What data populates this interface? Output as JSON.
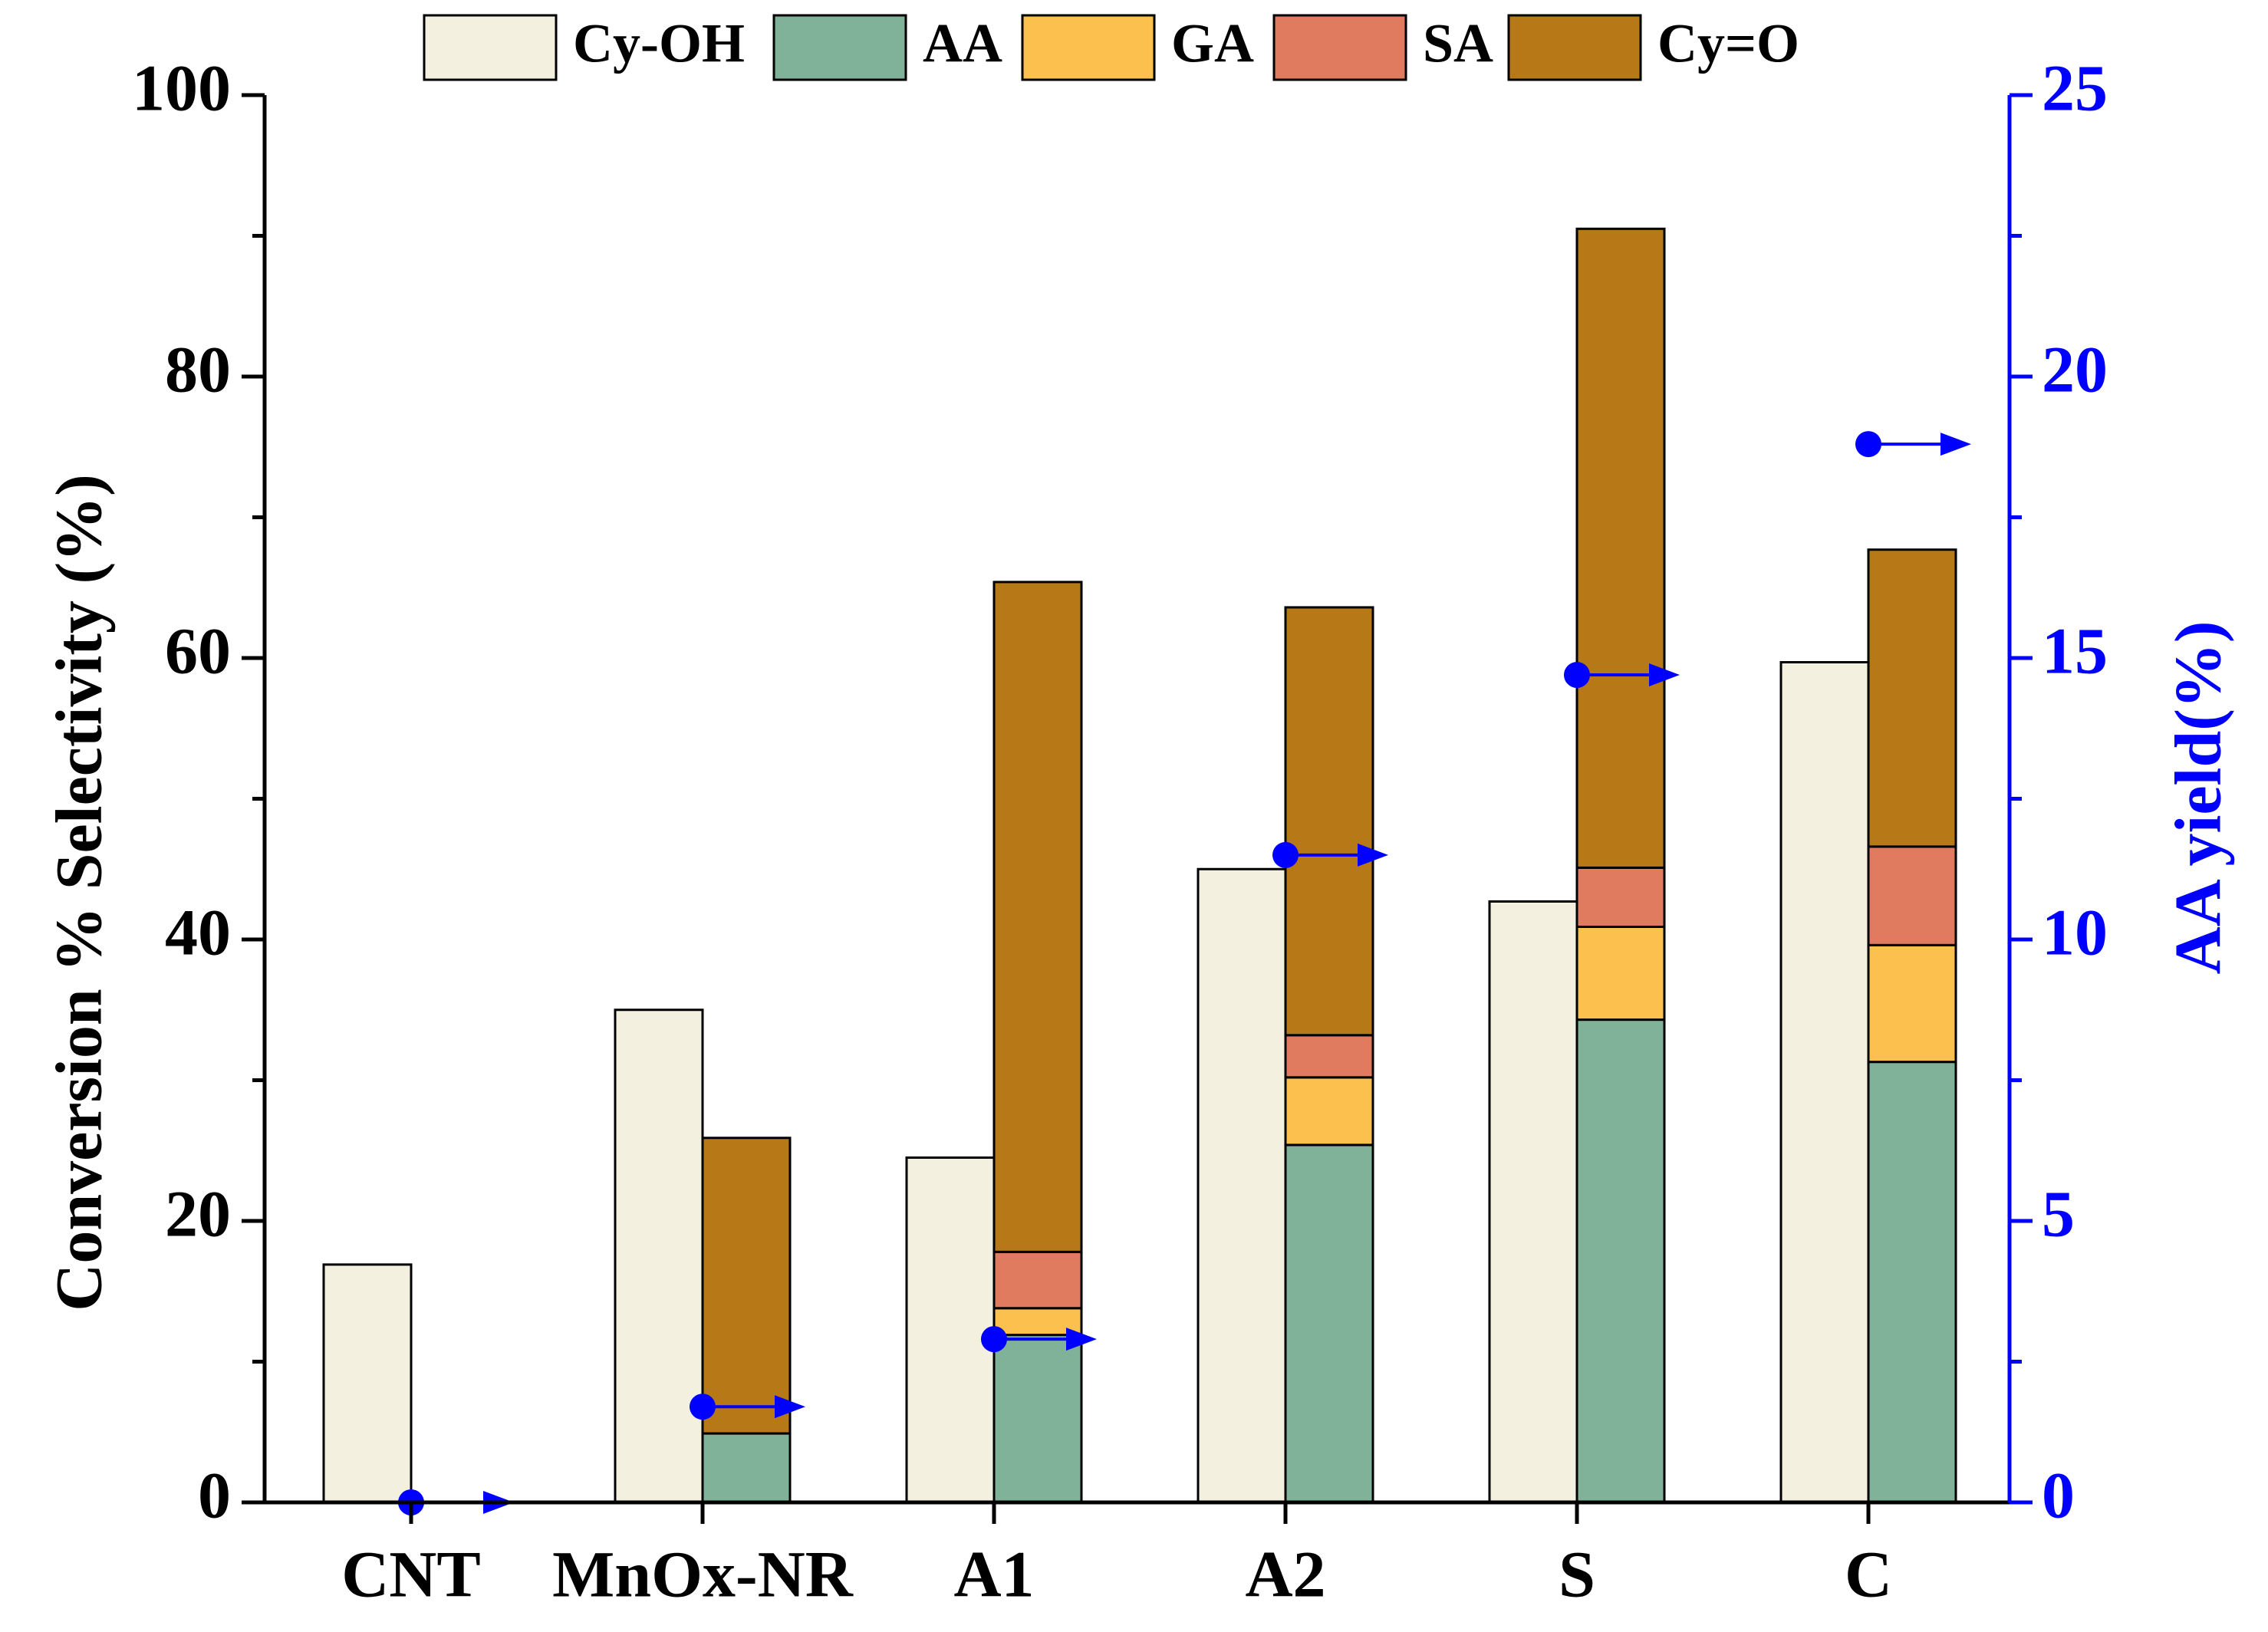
{
  "chart_data": {
    "type": "bar",
    "categories": [
      "CNT",
      "MnOx-NR",
      "A1",
      "A2",
      "S",
      "C"
    ],
    "conversion": {
      "name": "Cy-OH",
      "values": [
        16.9,
        35.0,
        24.5,
        45.0,
        42.7,
        59.7
      ]
    },
    "selectivity_stack": [
      {
        "name": "AA",
        "values": [
          0,
          4.9,
          11.9,
          25.4,
          34.3,
          31.3
        ]
      },
      {
        "name": "GA",
        "values": [
          0,
          0,
          1.9,
          4.8,
          6.6,
          8.3
        ]
      },
      {
        "name": "SA",
        "values": [
          0,
          0,
          4.0,
          3.0,
          4.2,
          7.0
        ]
      },
      {
        "name": "Cy=O",
        "values": [
          0,
          21.0,
          47.6,
          30.4,
          45.4,
          21.1
        ]
      }
    ],
    "aa_yield": {
      "name": "AA yield",
      "values": [
        0.0,
        1.7,
        2.9,
        11.5,
        14.7,
        18.8
      ]
    },
    "legend": [
      "Cy-OH",
      "AA",
      "GA",
      "SA",
      "Cy=O"
    ],
    "ylabel": "Conversion % Selectivity (%)",
    "y2label": "AA yield(%)",
    "ylim": [
      0,
      100
    ],
    "y2lim": [
      0,
      25
    ],
    "yticks": [
      "0",
      "20",
      "40",
      "60",
      "80",
      "100"
    ],
    "y2ticks": [
      "0",
      "5",
      "10",
      "15",
      "20",
      "25"
    ],
    "colors": {
      "Cy-OH": "#f3f0df",
      "AA": "#80b29a",
      "GA": "#fcc04f",
      "SA": "#e07b60",
      "Cy=O": "#b77917",
      "yield": "#0000ff",
      "axis": "#000000"
    }
  }
}
